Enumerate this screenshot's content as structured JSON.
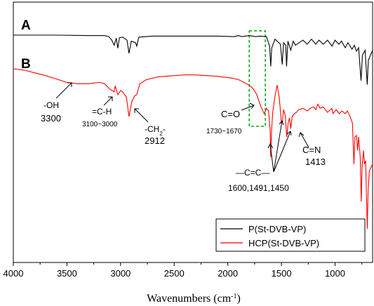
{
  "chart_data": {
    "type": "line",
    "xlabel_main": "Wavenumbers (cm",
    "xlabel_sup": "-1",
    "xlabel_end": ")",
    "ylabel": "",
    "xlim": [
      4000,
      650
    ],
    "x_reversed": true,
    "x_ticks": [
      4000,
      3500,
      3000,
      2500,
      2000,
      1500,
      1000
    ],
    "x_tick_labels": [
      "4000",
      "3500",
      "3000",
      "2500",
      "2000",
      "1500",
      "1000"
    ],
    "y_ticks_shown": false,
    "grid": false,
    "legend_position": "bottom-right",
    "panel_labels": [
      "A",
      "B"
    ],
    "series": [
      {
        "name": "P(St-DVB-VP)",
        "color": "#000000",
        "panel": "A",
        "points": [
          [
            4000,
            0.0
          ],
          [
            3600,
            0.0
          ],
          [
            3300,
            0.01
          ],
          [
            3150,
            0.01
          ],
          [
            3110,
            0.03
          ],
          [
            3082,
            0.1
          ],
          [
            3060,
            0.2
          ],
          [
            3040,
            0.06
          ],
          [
            3026,
            0.26
          ],
          [
            3010,
            0.05
          ],
          [
            2980,
            0.04
          ],
          [
            2940,
            0.1
          ],
          [
            2922,
            0.36
          ],
          [
            2900,
            0.12
          ],
          [
            2860,
            0.15
          ],
          [
            2849,
            0.22
          ],
          [
            2830,
            0.04
          ],
          [
            2700,
            0.02
          ],
          [
            2500,
            0.02
          ],
          [
            2300,
            0.02
          ],
          [
            2100,
            0.02
          ],
          [
            1940,
            0.03
          ],
          [
            1900,
            0.01
          ],
          [
            1870,
            0.03
          ],
          [
            1800,
            0.01
          ],
          [
            1740,
            0.03
          ],
          [
            1700,
            0.02
          ],
          [
            1640,
            0.03
          ],
          [
            1610,
            0.22
          ],
          [
            1600,
            0.62
          ],
          [
            1590,
            0.25
          ],
          [
            1560,
            0.08
          ],
          [
            1510,
            0.18
          ],
          [
            1493,
            0.58
          ],
          [
            1480,
            0.15
          ],
          [
            1460,
            0.2
          ],
          [
            1452,
            0.62
          ],
          [
            1440,
            0.12
          ],
          [
            1413,
            0.3
          ],
          [
            1390,
            0.12
          ],
          [
            1370,
            0.2
          ],
          [
            1300,
            0.1
          ],
          [
            1260,
            0.18
          ],
          [
            1220,
            0.08
          ],
          [
            1180,
            0.18
          ],
          [
            1150,
            0.1
          ],
          [
            1110,
            0.18
          ],
          [
            1070,
            0.1
          ],
          [
            1028,
            0.22
          ],
          [
            1000,
            0.1
          ],
          [
            965,
            0.18
          ],
          [
            940,
            0.12
          ],
          [
            905,
            0.25
          ],
          [
            880,
            0.15
          ],
          [
            842,
            0.28
          ],
          [
            820,
            0.2
          ],
          [
            800,
            0.32
          ],
          [
            780,
            0.25
          ],
          [
            758,
            0.9
          ],
          [
            745,
            0.4
          ],
          [
            720,
            0.3
          ],
          [
            700,
            0.98
          ],
          [
            690,
            0.5
          ],
          [
            670,
            0.4
          ],
          [
            650,
            0.3
          ]
        ]
      },
      {
        "name": "HCP(St-DVB-VP)",
        "color": "#ff0000",
        "panel": "B",
        "points": [
          [
            4000,
            0.0
          ],
          [
            3900,
            0.02
          ],
          [
            3800,
            0.06
          ],
          [
            3700,
            0.1
          ],
          [
            3600,
            0.15
          ],
          [
            3500,
            0.2
          ],
          [
            3400,
            0.22
          ],
          [
            3300,
            0.22
          ],
          [
            3200,
            0.2
          ],
          [
            3150,
            0.22
          ],
          [
            3100,
            0.3
          ],
          [
            3060,
            0.34
          ],
          [
            3050,
            0.25
          ],
          [
            3025,
            0.38
          ],
          [
            3000,
            0.32
          ],
          [
            2980,
            0.34
          ],
          [
            2945,
            0.42
          ],
          [
            2922,
            0.7
          ],
          [
            2895,
            0.48
          ],
          [
            2870,
            0.4
          ],
          [
            2850,
            0.38
          ],
          [
            2820,
            0.22
          ],
          [
            2760,
            0.16
          ],
          [
            2650,
            0.12
          ],
          [
            2500,
            0.1
          ],
          [
            2400,
            0.09
          ],
          [
            2300,
            0.09
          ],
          [
            2200,
            0.1
          ],
          [
            2100,
            0.11
          ],
          [
            2000,
            0.13
          ],
          [
            1950,
            0.14
          ],
          [
            1900,
            0.16
          ],
          [
            1850,
            0.2
          ],
          [
            1800,
            0.24
          ],
          [
            1760,
            0.3
          ],
          [
            1730,
            0.38
          ],
          [
            1700,
            0.52
          ],
          [
            1680,
            0.6
          ],
          [
            1660,
            0.66
          ],
          [
            1640,
            0.58
          ],
          [
            1620,
            0.62
          ],
          [
            1605,
            0.9
          ],
          [
            1600,
            1.3
          ],
          [
            1592,
            0.9
          ],
          [
            1580,
            0.62
          ],
          [
            1560,
            0.4
          ],
          [
            1540,
            0.24
          ],
          [
            1520,
            0.42
          ],
          [
            1500,
            0.8
          ],
          [
            1491,
            0.78
          ],
          [
            1480,
            0.6
          ],
          [
            1465,
            0.68
          ],
          [
            1450,
            1.0
          ],
          [
            1438,
            0.8
          ],
          [
            1425,
            0.72
          ],
          [
            1413,
            0.88
          ],
          [
            1400,
            0.7
          ],
          [
            1380,
            0.66
          ],
          [
            1360,
            0.64
          ],
          [
            1340,
            0.6
          ],
          [
            1300,
            0.58
          ],
          [
            1260,
            0.62
          ],
          [
            1230,
            0.58
          ],
          [
            1200,
            0.56
          ],
          [
            1180,
            0.6
          ],
          [
            1160,
            0.52
          ],
          [
            1140,
            0.58
          ],
          [
            1110,
            0.56
          ],
          [
            1070,
            0.64
          ],
          [
            1030,
            0.58
          ],
          [
            1018,
            0.66
          ],
          [
            990,
            0.6
          ],
          [
            960,
            0.66
          ],
          [
            935,
            0.62
          ],
          [
            905,
            0.66
          ],
          [
            885,
            0.62
          ],
          [
            860,
            0.7
          ],
          [
            838,
            0.8
          ],
          [
            824,
            1.4
          ],
          [
            815,
            1.0
          ],
          [
            800,
            0.98
          ],
          [
            790,
            1.2
          ],
          [
            780,
            1.0
          ],
          [
            765,
            1.3
          ],
          [
            756,
            1.95
          ],
          [
            748,
            1.45
          ],
          [
            735,
            1.2
          ],
          [
            725,
            1.4
          ],
          [
            715,
            1.35
          ],
          [
            700,
            2.35
          ],
          [
            692,
            1.8
          ],
          [
            680,
            1.5
          ],
          [
            665,
            1.45
          ],
          [
            650,
            1.4
          ]
        ]
      }
    ],
    "annotations": [
      {
        "label": "-OH",
        "value": "3300"
      },
      {
        "label": "=C-H",
        "value": "3100~3000"
      },
      {
        "label": "-CH",
        "sub": "2",
        "suffix": "-",
        "value": "2912"
      },
      {
        "label": "C=O",
        "value": "1730~1670"
      },
      {
        "label": "C=N",
        "value": "1413"
      },
      {
        "label": "—C=C—",
        "value": "1600,1491,1450"
      }
    ]
  },
  "colors": {
    "highlight_box": "#00aa00",
    "axis": "#000000"
  }
}
